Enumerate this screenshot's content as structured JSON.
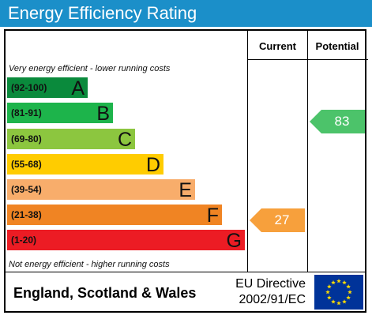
{
  "title": "Energy Efficiency Rating",
  "columns": {
    "current": "Current",
    "potential": "Potential"
  },
  "notes": {
    "top": "Very energy efficient - lower running costs",
    "bottom": "Not energy efficient - higher running costs"
  },
  "bands": [
    {
      "range": "(92-100)",
      "letter": "A",
      "color": "#0a8a3c"
    },
    {
      "range": "(81-91)",
      "letter": "B",
      "color": "#1db44b"
    },
    {
      "range": "(69-80)",
      "letter": "C",
      "color": "#8cc63f"
    },
    {
      "range": "(55-68)",
      "letter": "D",
      "color": "#ffcc00"
    },
    {
      "range": "(39-54)",
      "letter": "E",
      "color": "#f8ad6b"
    },
    {
      "range": "(21-38)",
      "letter": "F",
      "color": "#f08423"
    },
    {
      "range": "(1-20)",
      "letter": "G",
      "color": "#ec1c24"
    }
  ],
  "current": {
    "value": "27",
    "band": "F",
    "color": "#f7a03c"
  },
  "potential": {
    "value": "83",
    "band": "B",
    "color": "#4cc36a"
  },
  "footer": {
    "region": "England, Scotland & Wales",
    "directive_line1": "EU Directive",
    "directive_line2": "2002/91/EC"
  },
  "flag": {
    "background": "#003399",
    "star_color": "#ffdd00"
  }
}
